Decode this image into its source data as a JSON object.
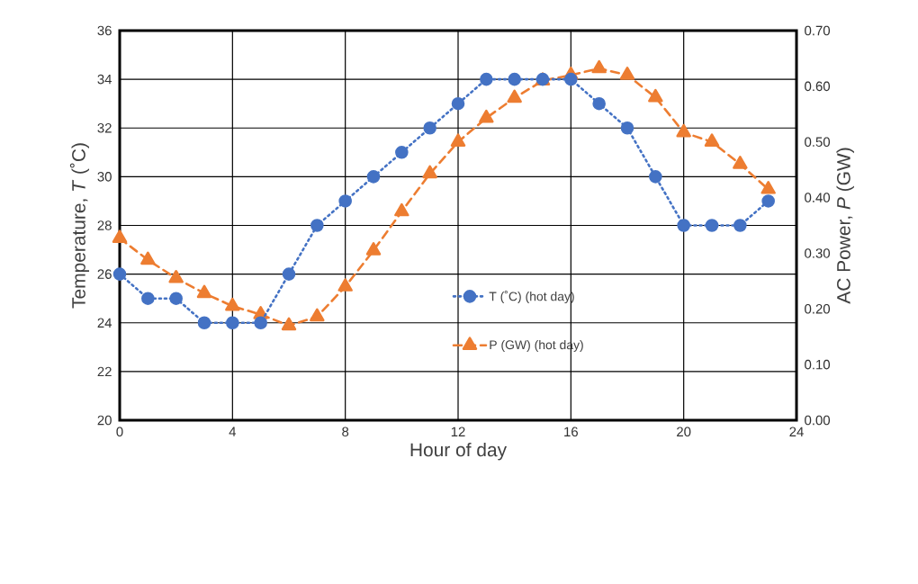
{
  "chart_data": {
    "type": "line",
    "xlabel": "Hour of day",
    "ylabel": "Temperature, *T* (˚C)",
    "y2label": "AC Power, *P* (GW)",
    "x": [
      0,
      1,
      2,
      3,
      4,
      5,
      6,
      7,
      8,
      9,
      10,
      11,
      12,
      13,
      14,
      15,
      16,
      17,
      18,
      19,
      20,
      21,
      22,
      23
    ],
    "series": [
      {
        "name": "T (˚C) (hot day)",
        "color": "#4472c4",
        "marker": "circle",
        "line_style": "dotted",
        "values": [
          26,
          25,
          25,
          24,
          24,
          24,
          26,
          28,
          29,
          30,
          31,
          32,
          33,
          34,
          34,
          34,
          34,
          33,
          32,
          30,
          28,
          28,
          28,
          29
        ]
      },
      {
        "name": "P (GW) (hot day)",
        "color": "#ed7d31",
        "marker": "triangle",
        "line_style": "dashed",
        "axis": "y2",
        "values": [
          0.327,
          0.288,
          0.255,
          0.228,
          0.205,
          0.19,
          0.17,
          0.186,
          0.24,
          0.305,
          0.375,
          0.443,
          0.5,
          0.543,
          0.579,
          0.61,
          0.62,
          0.632,
          0.62,
          0.58,
          0.517,
          0.5,
          0.46,
          0.415
        ]
      }
    ],
    "xlim": [
      0,
      24
    ],
    "xticks": [
      0,
      4,
      8,
      12,
      16,
      20,
      24
    ],
    "ylim": [
      20,
      36
    ],
    "yticks": [
      20,
      22,
      24,
      26,
      28,
      30,
      32,
      34,
      36
    ],
    "y2lim": [
      0,
      0.7
    ],
    "y2ticks": [
      {
        "value": 0,
        "label": "0.00"
      },
      {
        "value": 0.1,
        "label": "0.10"
      },
      {
        "value": 0.2,
        "label": "0.20"
      },
      {
        "value": 0.3,
        "label": "0.30"
      },
      {
        "value": 0.4,
        "label": "0.40"
      },
      {
        "value": 0.5,
        "label": "0.50"
      },
      {
        "value": 0.6,
        "label": "0.60"
      },
      {
        "value": 0.7,
        "label": "0.70"
      }
    ],
    "grid": true,
    "legend": "center"
  }
}
